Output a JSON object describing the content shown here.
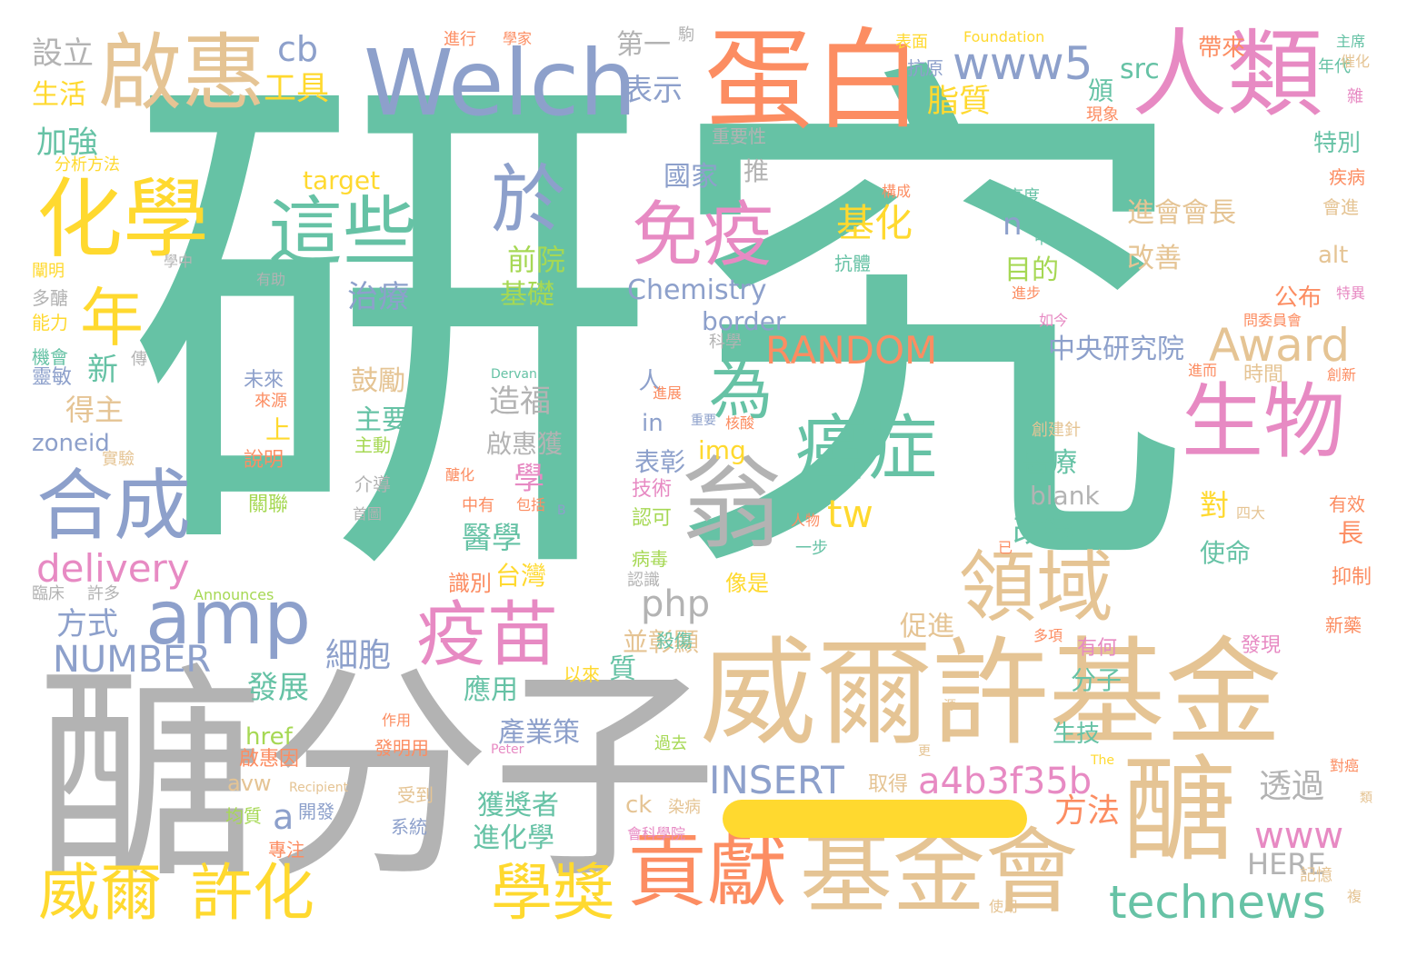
{
  "colors": {
    "teal": "#66c2a5",
    "orange": "#fc8d62",
    "blue": "#8da0cb",
    "pink": "#e78ac3",
    "lime": "#a6d854",
    "yellow": "#ffd92f",
    "tan": "#e5c494",
    "gray": "#b3b3b3"
  },
  "words": [
    "研究",
    "醣分子",
    "威爾許基金",
    "基金會",
    "醣",
    "蛋白",
    "人類",
    "Welch",
    "啟惠",
    "生物",
    "翁",
    "化學",
    "這些",
    "於",
    "免疫",
    "領域",
    "合成",
    "amp",
    "疫苗",
    "貢獻",
    "癌症",
    "為",
    "年",
    "Award",
    "RANDOM",
    "INSERT",
    "delivery",
    "technews",
    "威爾",
    "許化",
    "學獎",
    "www5",
    "www",
    "a4b3f35b",
    "tw",
    "NUMBER",
    "基化",
    "php",
    "Chemistry",
    "border",
    "設立",
    "生活",
    "加強",
    "分析方法",
    "cb",
    "工具",
    "表示",
    "第一",
    "脂質",
    "src",
    "target",
    "國家",
    "推",
    "進會會長",
    "n",
    "目的",
    "前院",
    "基礎",
    "治療",
    "改善",
    "中央研究院",
    "造福",
    "鼓勵",
    "主要",
    "新",
    "得主",
    "啟惠獲",
    "醫療",
    "blank",
    "改變",
    "學",
    "醫學",
    "zoneid",
    "台灣",
    "方式",
    "細胞",
    "發展",
    "分子",
    "透過",
    "方法",
    "HERE",
    "獲獎者",
    "進化學",
    "a",
    "href",
    "avw",
    "ck",
    "alt",
    "特別",
    "公布",
    "使命",
    "對",
    "長",
    "表彰",
    "技術",
    "認可",
    "抗原",
    "年代",
    "頒",
    "現象",
    "主席",
    "催化",
    "雜",
    "疾病",
    "會進",
    "特異",
    "創新",
    "抑制",
    "新藥",
    "有效",
    "應用",
    "產業策",
    "並彰顯",
    "促進",
    "img",
    "in",
    "人",
    "上",
    "說明",
    "主動",
    "未來",
    "來源",
    "關聯",
    "機會",
    "靈敏",
    "能力",
    "多醣",
    "闡明",
    "學中",
    "有助",
    "科學",
    "傳",
    "重要性",
    "時間",
    "進而",
    "發現",
    "記憶",
    "使用",
    "複",
    "多項",
    "有何",
    "已",
    "像是",
    "識別",
    "病毒",
    "認識",
    "殺傷",
    "以來",
    "作用",
    "發明用",
    "受到",
    "系統",
    "專注",
    "開發",
    "均質",
    "啟惠因",
    "取得",
    "生技",
    "質",
    "表面",
    "Foundation",
    "帶來",
    "進行",
    "學家",
    "駒",
    "抗體",
    "高度",
    "構成",
    "中",
    "進步",
    "如今",
    "問委員會",
    "Dervan",
    "創建針",
    "核酸",
    "重要",
    "進展",
    "包括",
    "醣化",
    "中有",
    "首圖",
    "介導",
    "實驗",
    "人物",
    "一步",
    "四大",
    "臨床",
    "許多",
    "Announces",
    "Recipient",
    "Peter",
    "The",
    "對癌",
    "類",
    "染病",
    "會科學院",
    "過去",
    "B",
    "更",
    "源"
  ]
}
